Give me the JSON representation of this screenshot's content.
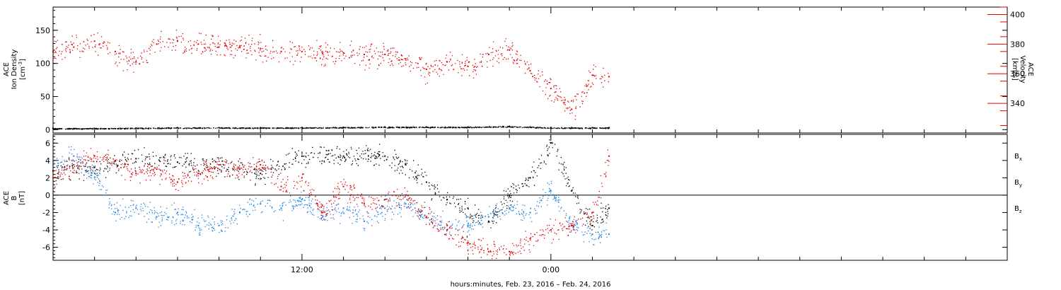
{
  "chart_data": [
    {
      "type": "scatter",
      "panel": "top",
      "left_axis": {
        "label_lines": [
          "ACE",
          "Ion Density"
        ],
        "unit_base": "[cm",
        "unit_sup": "-3",
        "unit_end": "]",
        "ylim": [
          -5,
          185
        ],
        "ticks": [
          0,
          50,
          100,
          150
        ],
        "tick_labels": [
          "0",
          "50",
          "100",
          "150"
        ]
      },
      "right_axis": {
        "label_lines": [
          "ACE",
          "Velocity",
          "[km/s]"
        ],
        "color": "#e00000",
        "ylim": [
          320,
          405
        ],
        "ticks": [
          340,
          360,
          380,
          400
        ],
        "tick_labels": [
          "340",
          "360",
          "380",
          "400"
        ]
      },
      "xlim": [
        0,
        46
      ],
      "x_units": "hours since 00:00 Feb. 23, 2016",
      "series": [
        {
          "name": "Ion Density",
          "axis": "left",
          "color": "#000000",
          "t": [
            0,
            2,
            4,
            6,
            8,
            10,
            12,
            14,
            16,
            18,
            20,
            22,
            23,
            24,
            25,
            26,
            26.8
          ],
          "values": [
            2,
            2,
            2.5,
            3,
            3,
            3,
            3,
            3.5,
            4,
            4,
            4,
            5,
            4,
            3,
            3,
            3,
            3
          ]
        },
        {
          "name": "Velocity",
          "axis": "right",
          "color": "#e00000",
          "t": [
            0,
            1,
            2,
            3,
            4,
            5,
            6,
            7,
            8,
            9,
            10,
            11,
            12,
            13,
            14,
            15,
            16,
            17,
            18,
            19,
            20,
            21,
            22,
            23,
            24,
            25,
            26,
            26.8
          ],
          "values": [
            375,
            378,
            382,
            375,
            368,
            380,
            382,
            380,
            378,
            378,
            377,
            375,
            375,
            374,
            374,
            373,
            373,
            370,
            363,
            368,
            365,
            373,
            376,
            362,
            350,
            336,
            359,
            358
          ]
        }
      ]
    },
    {
      "type": "scatter",
      "panel": "bottom",
      "left_axis": {
        "label_lines": [
          "ACE",
          "B",
          "[nT]"
        ],
        "ylim": [
          -7.5,
          7
        ],
        "ticks": [
          -6,
          -4,
          -2,
          0,
          2,
          4,
          6
        ],
        "tick_labels": [
          "-6",
          "-4",
          "-2",
          "0",
          "2",
          "4",
          "6"
        ]
      },
      "xlim": [
        0,
        46
      ],
      "x_units": "hours since 00:00 Feb. 23, 2016",
      "zero_line": true,
      "legend": [
        {
          "name": "B",
          "sub": "x",
          "color": "#000000"
        },
        {
          "name": "B",
          "sub": "y",
          "color": "#1a7fe0"
        },
        {
          "name": "B",
          "sub": "z",
          "color": "#e00000"
        }
      ],
      "series": [
        {
          "name": "Bx",
          "color": "#000000",
          "t": [
            0,
            2,
            4,
            6,
            8,
            10,
            12,
            14,
            16,
            17,
            18,
            19,
            20,
            21,
            22,
            23,
            24,
            25,
            26,
            26.8
          ],
          "values": [
            2.8,
            3.2,
            4.2,
            3.8,
            3.5,
            2.5,
            4.5,
            4.5,
            4.5,
            3.5,
            1.5,
            -0.5,
            -1.5,
            -3,
            0,
            2,
            6,
            0.5,
            -3.5,
            -1.5
          ]
        },
        {
          "name": "By",
          "color": "#1a7fe0",
          "t": [
            0,
            1,
            2,
            3,
            4,
            5,
            6,
            7,
            8,
            9,
            10,
            11,
            12,
            13,
            14,
            15,
            16,
            17,
            18,
            19,
            20,
            21,
            22,
            23,
            24,
            25,
            26,
            26.8
          ],
          "values": [
            3.5,
            4.5,
            2.5,
            -2,
            -1.5,
            -2.5,
            -2,
            -3.5,
            -3.5,
            -2,
            -1,
            -1.5,
            -0.5,
            -2.5,
            -1.5,
            -3,
            -1.5,
            -1,
            -2.5,
            -3.5,
            -3.5,
            -2.5,
            -1.5,
            -2,
            0.5,
            -3.5,
            -4.5,
            -4.5
          ]
        },
        {
          "name": "Bz",
          "color": "#e00000",
          "t": [
            0,
            1,
            2,
            3,
            4,
            5,
            6,
            7,
            8,
            9,
            10,
            11,
            12,
            13,
            14,
            15,
            16,
            17,
            18,
            19,
            20,
            21,
            22,
            23,
            24,
            25,
            26,
            26.8
          ],
          "values": [
            2,
            3.5,
            4.5,
            4,
            2.5,
            3,
            1.5,
            2.5,
            3.5,
            3,
            3.5,
            1,
            2,
            -2,
            1,
            -1,
            -0.5,
            0,
            -2.5,
            -4,
            -5.5,
            -6.5,
            -6.5,
            -5,
            -4,
            -3.5,
            -2,
            4.5
          ]
        }
      ]
    }
  ],
  "x_axis": {
    "ticks": [
      12,
      24
    ],
    "tick_labels": [
      "12:00",
      "0:00"
    ],
    "minor_step": 2,
    "label": "hours:minutes, Feb. 23, 2016 – Feb. 24, 2016"
  }
}
